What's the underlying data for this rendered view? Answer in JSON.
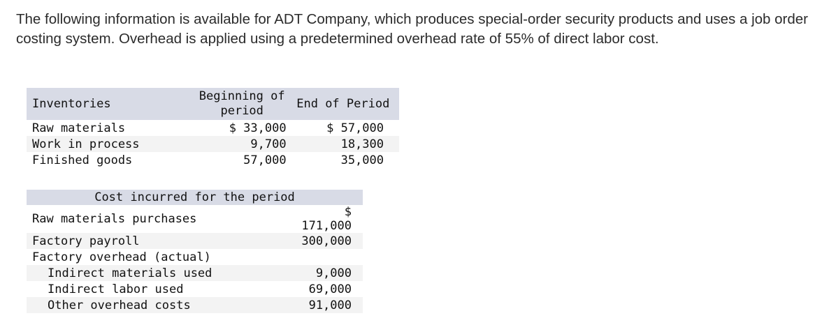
{
  "intro": "The following information is available for ADT Company, which produces special-order security products and uses a job order costing system. Overhead is applied using a predetermined overhead rate of 55% of direct labor cost.",
  "inventories": {
    "headers": [
      "Inventories",
      "Beginning of period",
      "End of Period"
    ],
    "rows": [
      {
        "label": "Raw materials",
        "begin": "$ 33,000",
        "end": "$ 57,000"
      },
      {
        "label": "Work in process",
        "begin": "9,700",
        "end": "18,300"
      },
      {
        "label": "Finished goods",
        "begin": "57,000",
        "end": "35,000"
      }
    ]
  },
  "costs": {
    "header": "Cost incurred for the period",
    "rows": [
      {
        "label": "Raw materials purchases",
        "value": "$ 171,000"
      },
      {
        "label": "Factory payroll",
        "value": "300,000"
      },
      {
        "label": "Factory overhead (actual)",
        "value": ""
      },
      {
        "label": "Indirect materials used",
        "value": "9,000"
      },
      {
        "label": "Indirect labor used",
        "value": "69,000"
      },
      {
        "label": "Other overhead costs",
        "value": "91,000"
      }
    ]
  }
}
